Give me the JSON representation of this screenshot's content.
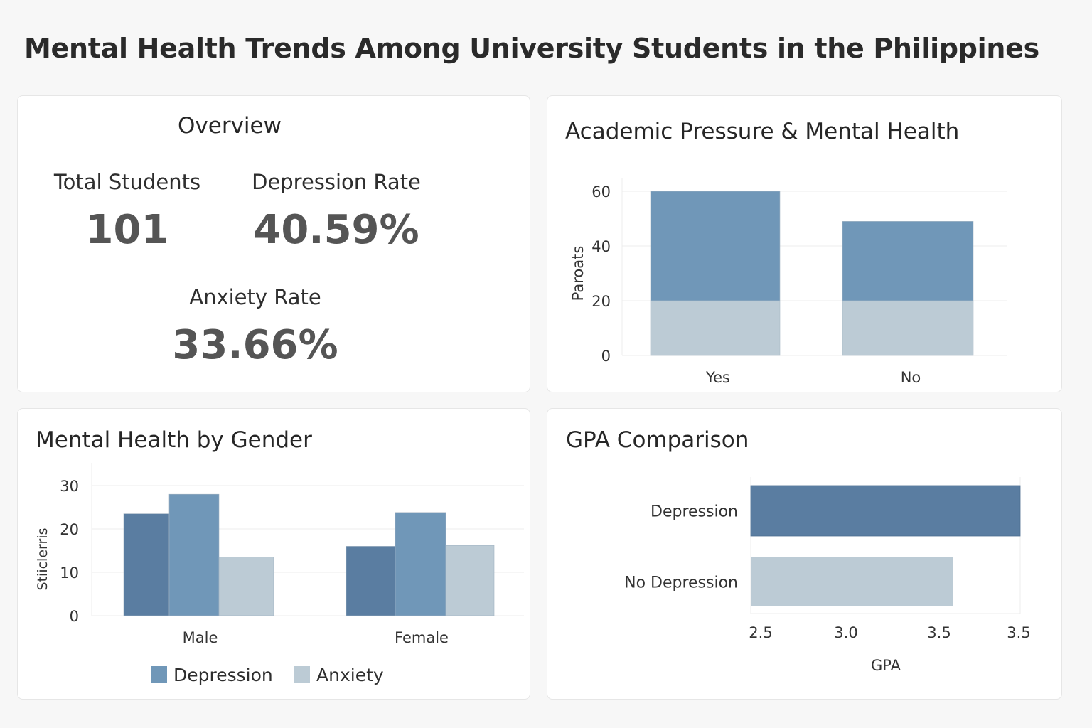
{
  "title": "Mental Health Trends Among University Students in the Philippines",
  "overview": {
    "title": "Overview",
    "total_students_label": "Total Students",
    "total_students_value": "101",
    "depression_rate_label": "Depression Rate",
    "depression_rate_value": "40.59%",
    "anxiety_rate_label": "Anxiety Rate",
    "anxiety_rate_value": "33.66%"
  },
  "colors": {
    "dark_blue": "#5a7da1",
    "mid_blue": "#7097b8",
    "light_gray": "#bccbd5",
    "grid": "#ececec",
    "axis_text": "#333333"
  },
  "chart_data": [
    {
      "id": "pressure",
      "type": "bar",
      "stacked": true,
      "title": "Academic Pressure & Mental Health",
      "ylabel": "Paroats",
      "xlabel": "",
      "categories": [
        "Yes",
        "No"
      ],
      "ylim": [
        0,
        60
      ],
      "yticks": [
        0,
        20,
        40,
        60
      ],
      "series": [
        {
          "values": [
            20,
            20
          ],
          "color": "#bccbd5"
        },
        {
          "values": [
            40,
            29
          ],
          "color": "#7097b8"
        }
      ],
      "grid": true,
      "legend": "none"
    },
    {
      "id": "gender",
      "type": "bar",
      "title": "Mental Health by Gender",
      "ylabel": "Stiiclerris",
      "xlabel": "",
      "categories": [
        "Male",
        "Female"
      ],
      "ylim": [
        0,
        30
      ],
      "yticks": [
        0,
        10,
        20,
        30
      ],
      "series": [
        {
          "values": [
            23.5,
            16
          ],
          "color": "#5a7da1"
        },
        {
          "name": "Depression",
          "values": [
            28,
            23.8
          ],
          "color": "#7097b8"
        },
        {
          "name": "Anxiety",
          "values": [
            13.5,
            16.2
          ],
          "color": "#bccbd5"
        }
      ],
      "grid": true,
      "legend": "bottom"
    },
    {
      "id": "gpa",
      "type": "bar",
      "orientation": "horizontal",
      "title": "GPA Comparison",
      "xlabel": "GPA",
      "ylabel": "",
      "categories": [
        "Depression",
        "No Depression"
      ],
      "xlim": [
        2.5,
        3.5
      ],
      "xtick_labels": [
        "2.5",
        "3.0",
        "3.5",
        "3.5"
      ],
      "values": [
        3.5,
        3.25
      ],
      "colors": [
        "#5a7da1",
        "#bccbd5"
      ],
      "grid": true,
      "legend": "none"
    }
  ]
}
